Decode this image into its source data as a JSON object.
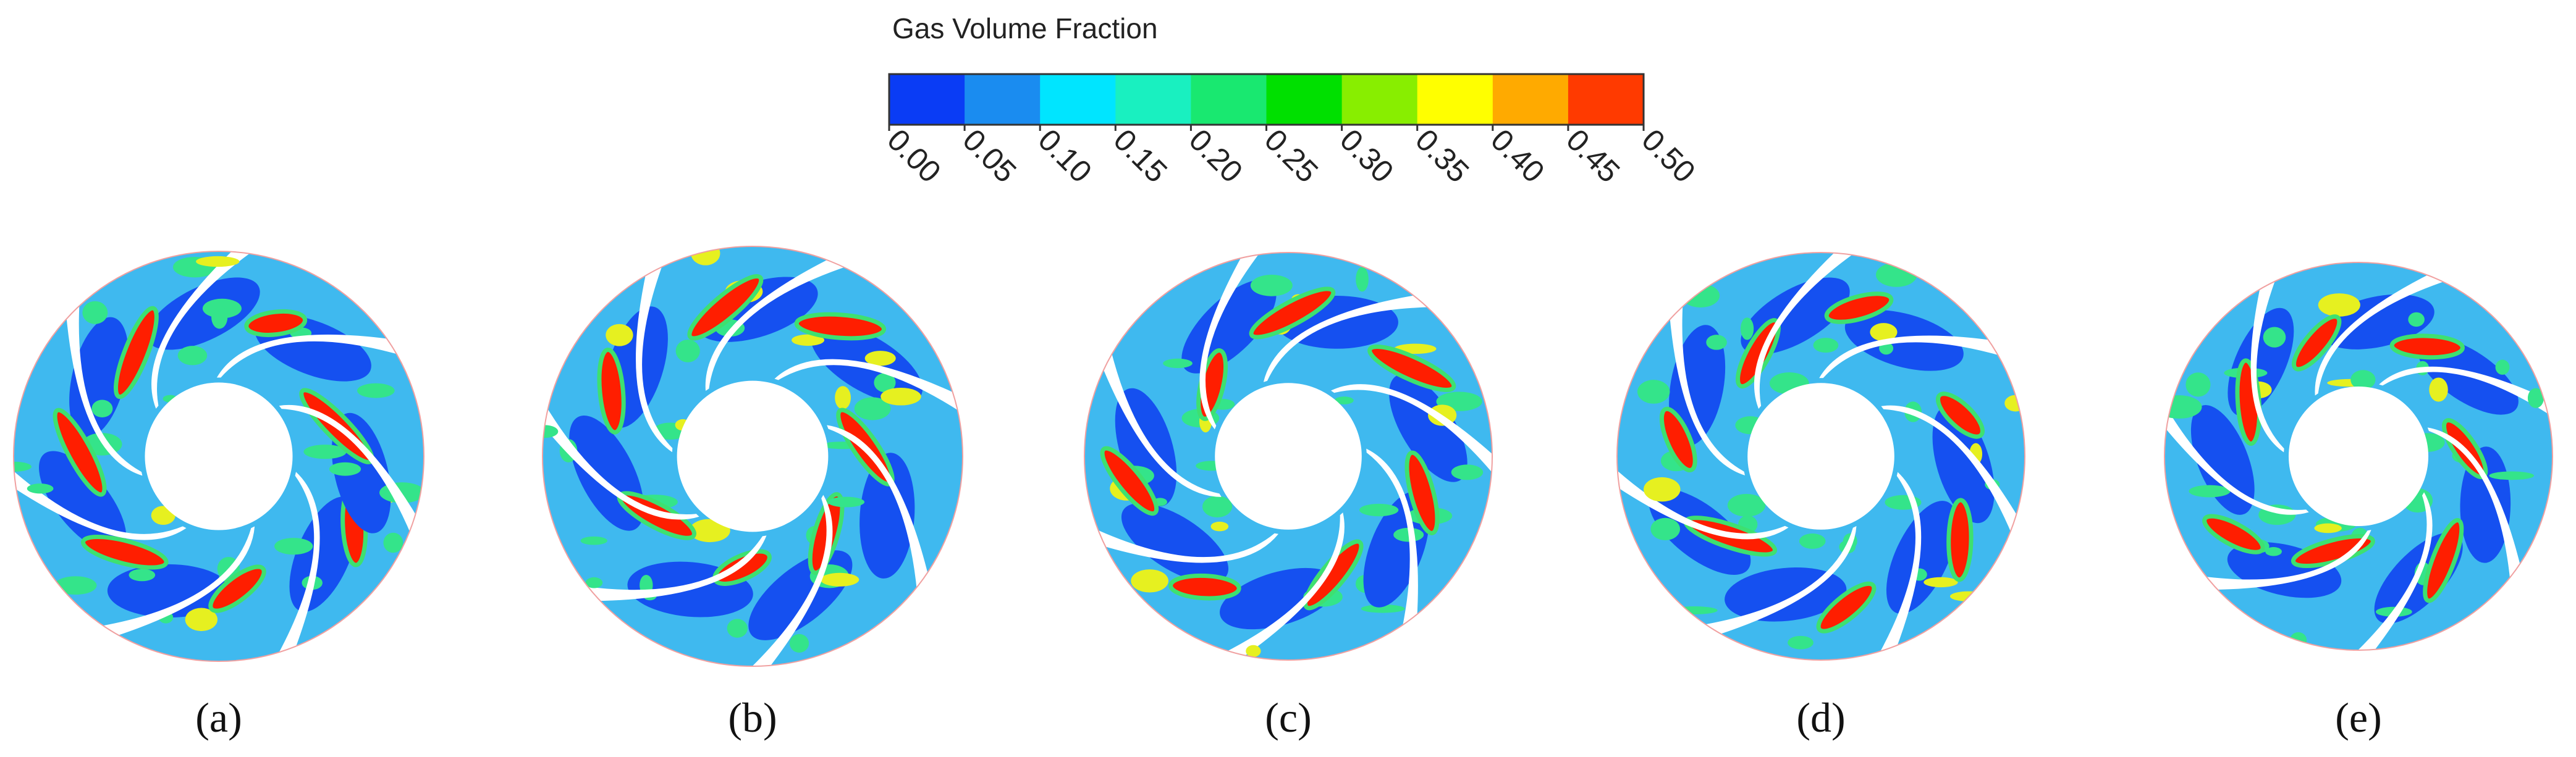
{
  "colorbar": {
    "title": "Gas Volume Fraction",
    "ticks": [
      "0.00",
      "0.05",
      "0.10",
      "0.15",
      "0.20",
      "0.25",
      "0.30",
      "0.35",
      "0.40",
      "0.45",
      "0.50"
    ],
    "colors": [
      "#0a3cf5",
      "#1a8cf0",
      "#00e5ff",
      "#19f0c0",
      "#19e870",
      "#00e000",
      "#88ee00",
      "#ffff00",
      "#ffaa00",
      "#ff3a00"
    ]
  },
  "panels": [
    {
      "label": "(a)"
    },
    {
      "label": "(b)"
    },
    {
      "label": "(c)"
    },
    {
      "label": "(d)"
    },
    {
      "label": "(e)"
    }
  ]
}
